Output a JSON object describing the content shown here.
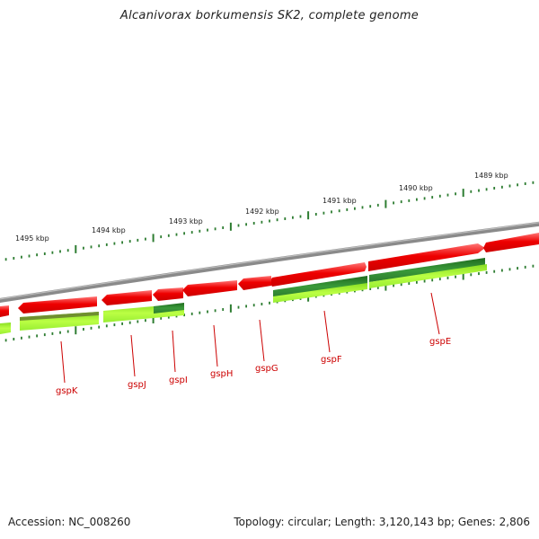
{
  "title": "Alcanivorax borkumensis SK2, complete genome",
  "footer": {
    "accession": "Accession: NC_008260",
    "summary": "Topology: circular; Length: 3,120,143 bp; Genes: 2,806"
  },
  "kbp_ticks": [
    "1489 kbp",
    "1490 kbp",
    "1491 kbp",
    "1492 kbp",
    "1493 kbp",
    "1494 kbp",
    "1495 kbp"
  ],
  "gene_labels": [
    "gspE",
    "gspF",
    "gspG",
    "gspH",
    "gspI",
    "gspJ",
    "gspK"
  ],
  "colors": {
    "backbone": "#7a7a7a",
    "cds": "#ee0000",
    "cds_light": "#ff6a6a",
    "gene_dark": "#2e8b2e",
    "gene_light": "#adff2f",
    "tick": "#2e7d32",
    "label_line": "#cc0000"
  }
}
